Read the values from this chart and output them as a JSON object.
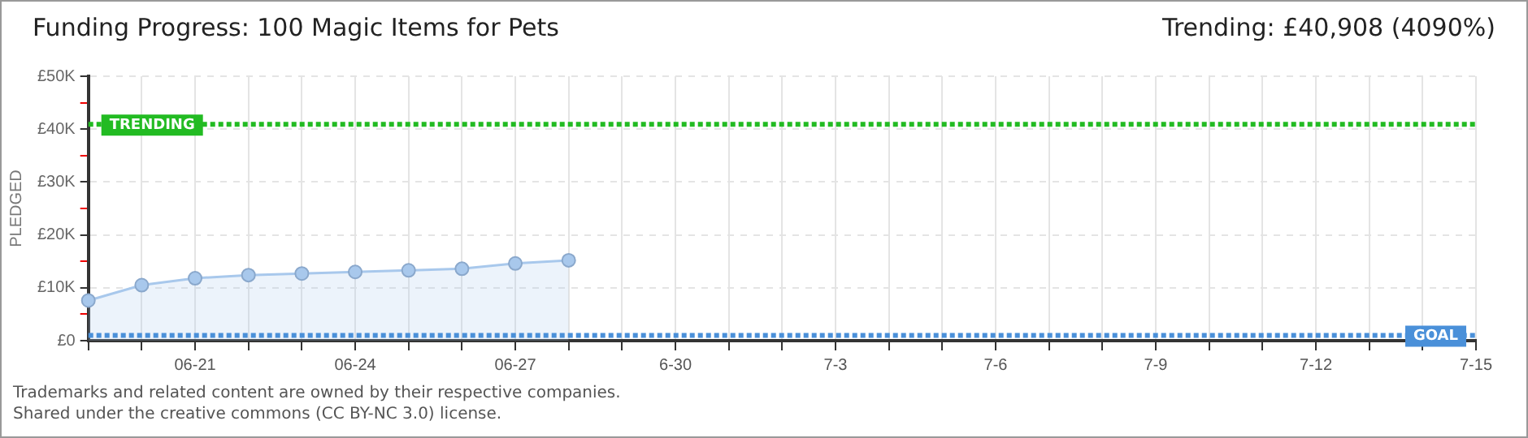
{
  "chart_data": {
    "type": "area",
    "title": "Funding Progress: 100 Magic Items for Pets",
    "subtitle": "Trending:  £40,908 (4090%)",
    "ylabel": "PLEDGED",
    "categories": [
      null,
      null,
      "06-21",
      null,
      null,
      "06-24",
      null,
      null,
      "06-27",
      null,
      null,
      "6-30",
      null,
      null,
      "7-3",
      null,
      null,
      "7-6",
      null,
      null,
      "7-9",
      null,
      null,
      "7-12",
      null,
      null,
      "7-15"
    ],
    "series": [
      {
        "color": "#a8c8ec",
        "values": [
          7600,
          10500,
          11800,
          12400,
          12700,
          13000,
          13300,
          13600,
          14600,
          15200,
          null,
          null,
          null,
          null,
          null,
          null,
          null,
          null,
          null,
          null,
          null,
          null,
          null,
          null,
          null,
          null,
          null
        ]
      }
    ],
    "ylim": [
      0,
      50000
    ],
    "yticks": [
      {
        "value": 0,
        "label": "£0"
      },
      {
        "value": 5000,
        "label": null
      },
      {
        "value": 10000,
        "label": "£10K"
      },
      {
        "value": 15000,
        "label": null
      },
      {
        "value": 20000,
        "label": "£20K"
      },
      {
        "value": 25000,
        "label": null
      },
      {
        "value": 30000,
        "label": "£30K"
      },
      {
        "value": 35000,
        "label": null
      },
      {
        "value": 40000,
        "label": "£40K"
      },
      {
        "value": 45000,
        "label": null
      },
      {
        "value": 50000,
        "label": "£50K"
      }
    ],
    "ref_lines": [
      {
        "axis": "y",
        "value": 40908,
        "label": "TRENDING",
        "color": "#22bb22",
        "line_style": "dotted"
      },
      {
        "axis": "y",
        "value": 1000,
        "label": "GOAL",
        "color": "#4a90d9",
        "line_style": "dotted"
      }
    ],
    "annotations": [
      "Trademarks and related content are owned by their respective companies.",
      "Shared under the creative commons (CC BY-NC 3.0) license."
    ],
    "grid": true,
    "legend": false,
    "marker": "circle",
    "line_style": "solid"
  }
}
